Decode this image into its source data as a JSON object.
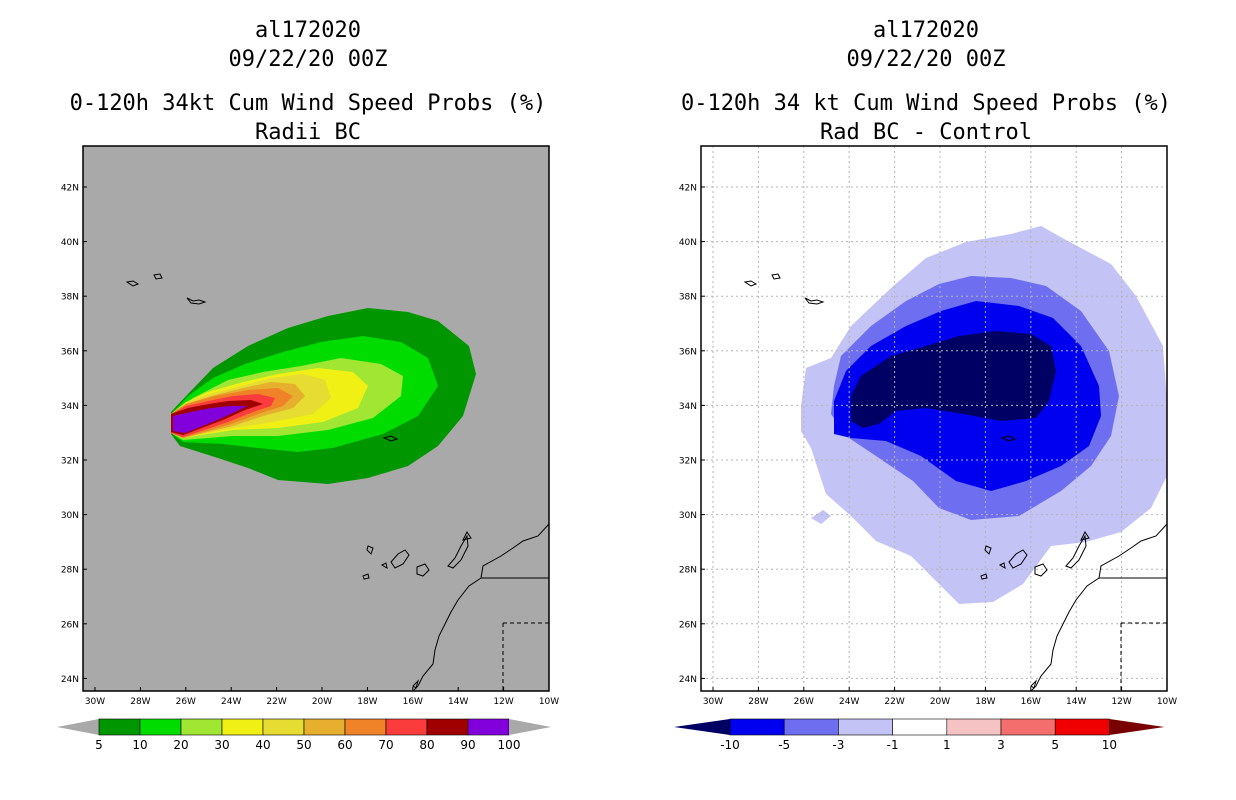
{
  "left_panel": {
    "title_storm": "al172020",
    "title_date": "09/22/20 00Z",
    "title_product": "0-120h 34kt Cum Wind Speed Probs (%)",
    "title_experiment": "Radii BC",
    "lat_labels": [
      "42N",
      "40N",
      "38N",
      "36N",
      "34N",
      "32N",
      "30N",
      "28N",
      "26N",
      "24N"
    ],
    "lon_labels": [
      "30W",
      "28W",
      "26W",
      "24W",
      "22W",
      "20W",
      "18W",
      "16W",
      "14W",
      "12W",
      "10W"
    ],
    "colorbar": {
      "labels": [
        "5",
        "10",
        "20",
        "30",
        "40",
        "50",
        "60",
        "70",
        "80",
        "90",
        "100"
      ],
      "colors": [
        "#009600",
        "#00dc00",
        "#a0e632",
        "#f0f014",
        "#e6dc32",
        "#e6af2d",
        "#f08228",
        "#fa3c3c",
        "#a00000",
        "#8200dc"
      ]
    }
  },
  "right_panel": {
    "title_storm": "al172020",
    "title_date": "09/22/20 00Z",
    "title_product": "0-120h 34 kt Cum Wind Speed Probs (%)",
    "title_experiment": "Rad BC - Control",
    "lat_labels": [
      "42N",
      "40N",
      "38N",
      "36N",
      "34N",
      "32N",
      "30N",
      "28N",
      "26N",
      "24N"
    ],
    "lon_labels": [
      "30W",
      "28W",
      "26W",
      "24W",
      "22W",
      "20W",
      "18W",
      "16W",
      "14W",
      "12W",
      "10W"
    ],
    "colorbar": {
      "labels": [
        "-10",
        "-5",
        "-3",
        "-1",
        "1",
        "3",
        "5",
        "10"
      ],
      "colors": [
        "#000064",
        "#0000f0",
        "#6e6ef0",
        "#c3c3f5",
        "#ffffff",
        "#f5c3c3",
        "#f56e6e",
        "#f00000",
        "#780000"
      ]
    }
  }
}
